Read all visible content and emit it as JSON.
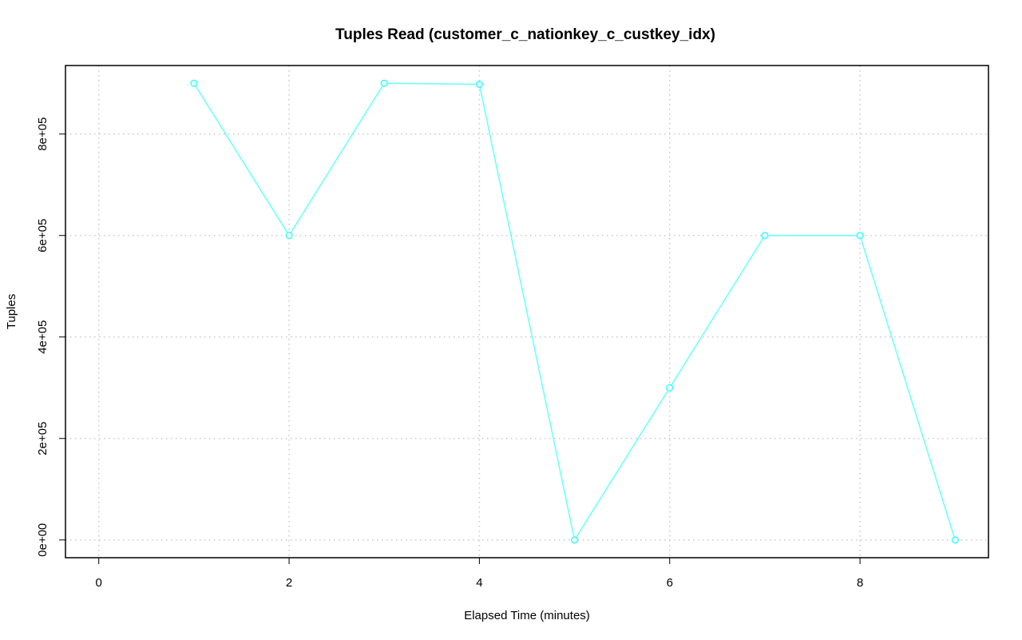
{
  "chart_data": {
    "type": "line",
    "title": "Tuples Read (customer_c_nationkey_c_custkey_idx)",
    "xlabel": "Elapsed Time (minutes)",
    "ylabel": "Tuples",
    "xlim": [
      -0.35,
      9.35
    ],
    "ylim": [
      -35000,
      935000
    ],
    "x_ticks": [
      0,
      2,
      4,
      6,
      8
    ],
    "x_tick_labels": [
      "0",
      "2",
      "4",
      "6",
      "8"
    ],
    "y_ticks": [
      0,
      200000,
      400000,
      600000,
      800000
    ],
    "y_tick_labels": [
      "0e+00",
      "2e+05",
      "4e+05",
      "6e+05",
      "8e+05"
    ],
    "grid": true,
    "series": [
      {
        "color": "#66ffff",
        "x": [
          1,
          2,
          3,
          4,
          5,
          6,
          7,
          8,
          9
        ],
        "values": [
          900000,
          600000,
          900000,
          898000,
          0,
          300000,
          600000,
          600000,
          0
        ]
      }
    ]
  }
}
